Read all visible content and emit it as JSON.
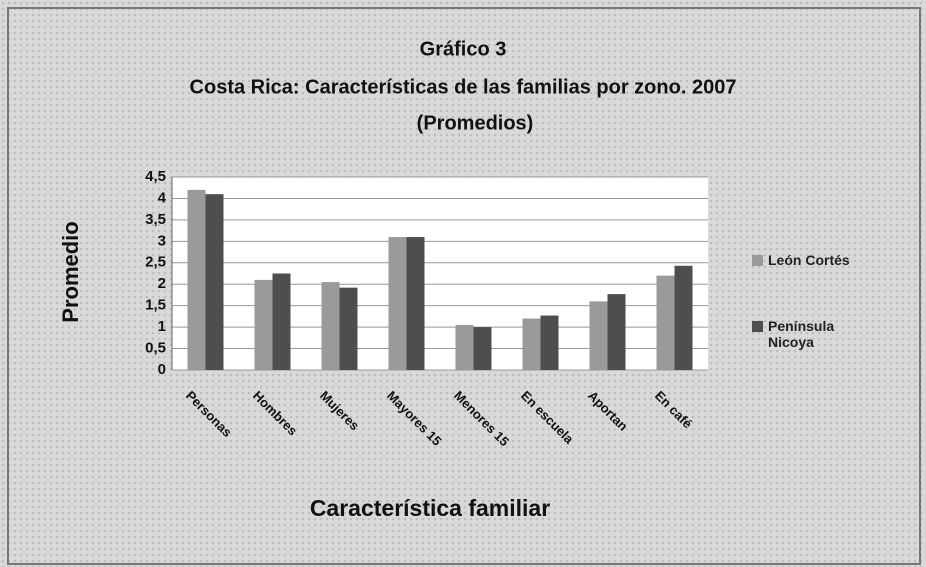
{
  "chart_data": {
    "type": "bar",
    "title": [
      "Gráfico 3",
      "Costa Rica: Características de las familias por zono. 2007",
      "(Promedios)"
    ],
    "y_label": "Promedio",
    "x_label": "Característica familiar",
    "categories": [
      "Personas",
      "Hombres",
      "Mujeres",
      "Mayores 15",
      "Menores 15",
      "En escuela",
      "Aportan",
      "En café"
    ],
    "series": [
      {
        "name": "León Cortés",
        "color": "#9a9a9a",
        "values": [
          4.2,
          2.1,
          2.05,
          3.1,
          1.05,
          1.2,
          1.6,
          2.2
        ]
      },
      {
        "name": "Península Nicoya",
        "color": "#4e4e4e",
        "values": [
          4.1,
          2.25,
          1.92,
          3.1,
          1.0,
          1.27,
          1.77,
          2.43
        ]
      }
    ],
    "ylim": [
      0,
      4.5
    ],
    "yticks": [
      0,
      {
        "value": 0.5,
        "label": "0,5"
      },
      1,
      {
        "value": 1.5,
        "label": "1,5"
      },
      2,
      {
        "value": 2.5,
        "label": "2,5"
      },
      3,
      {
        "value": 3.5,
        "label": "3,5"
      },
      4,
      {
        "value": 4.5,
        "label": "4,5"
      }
    ],
    "grid": true,
    "legend": "right"
  }
}
